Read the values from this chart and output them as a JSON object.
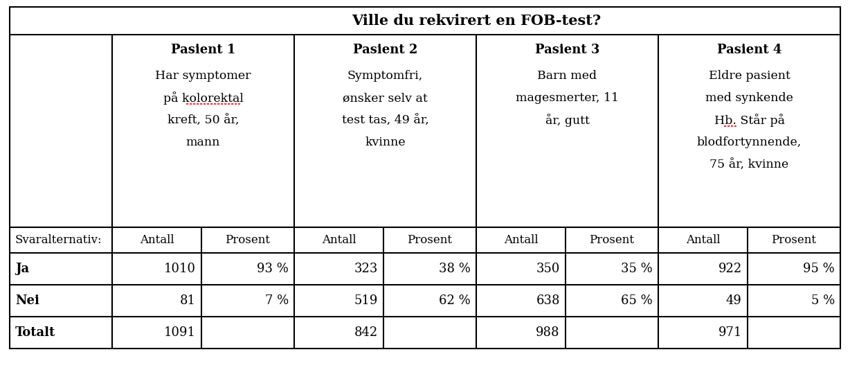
{
  "title": "Ville du rekvirert en FOB-test?",
  "patient_headers": [
    "Pasient 1",
    "Pasient 2",
    "Pasient 3",
    "Pasient 4"
  ],
  "patient_descriptions": [
    [
      "Har symptomer",
      "på kolorektal",
      "kreft, 50 år,",
      "mann"
    ],
    [
      "Symptomfri,",
      "ønsker selv at",
      "test tas, 49 år,",
      "kvinne"
    ],
    [
      "Barn med",
      "magesmerter, 11",
      "år, gutt"
    ],
    [
      "Eldre pasient",
      "med synkende",
      "Hb. Står på",
      "blodfortynnende,",
      "75 år, kvinne"
    ]
  ],
  "subheader_label": "Svaralternativ:",
  "row_labels": [
    "Ja",
    "Nei",
    "Totalt"
  ],
  "data": [
    [
      "1010",
      "93 %",
      "323",
      "38 %",
      "350",
      "35 %",
      "922",
      "95 %"
    ],
    [
      "81",
      "7 %",
      "519",
      "62 %",
      "638",
      "65 %",
      "49",
      "5 %"
    ],
    [
      "1091",
      "",
      "842",
      "",
      "988",
      "",
      "971",
      ""
    ]
  ],
  "bg_color": "#ffffff",
  "font_size": 13,
  "title_font_size": 15,
  "desc_font_size": 12.5,
  "data_font_size": 13
}
